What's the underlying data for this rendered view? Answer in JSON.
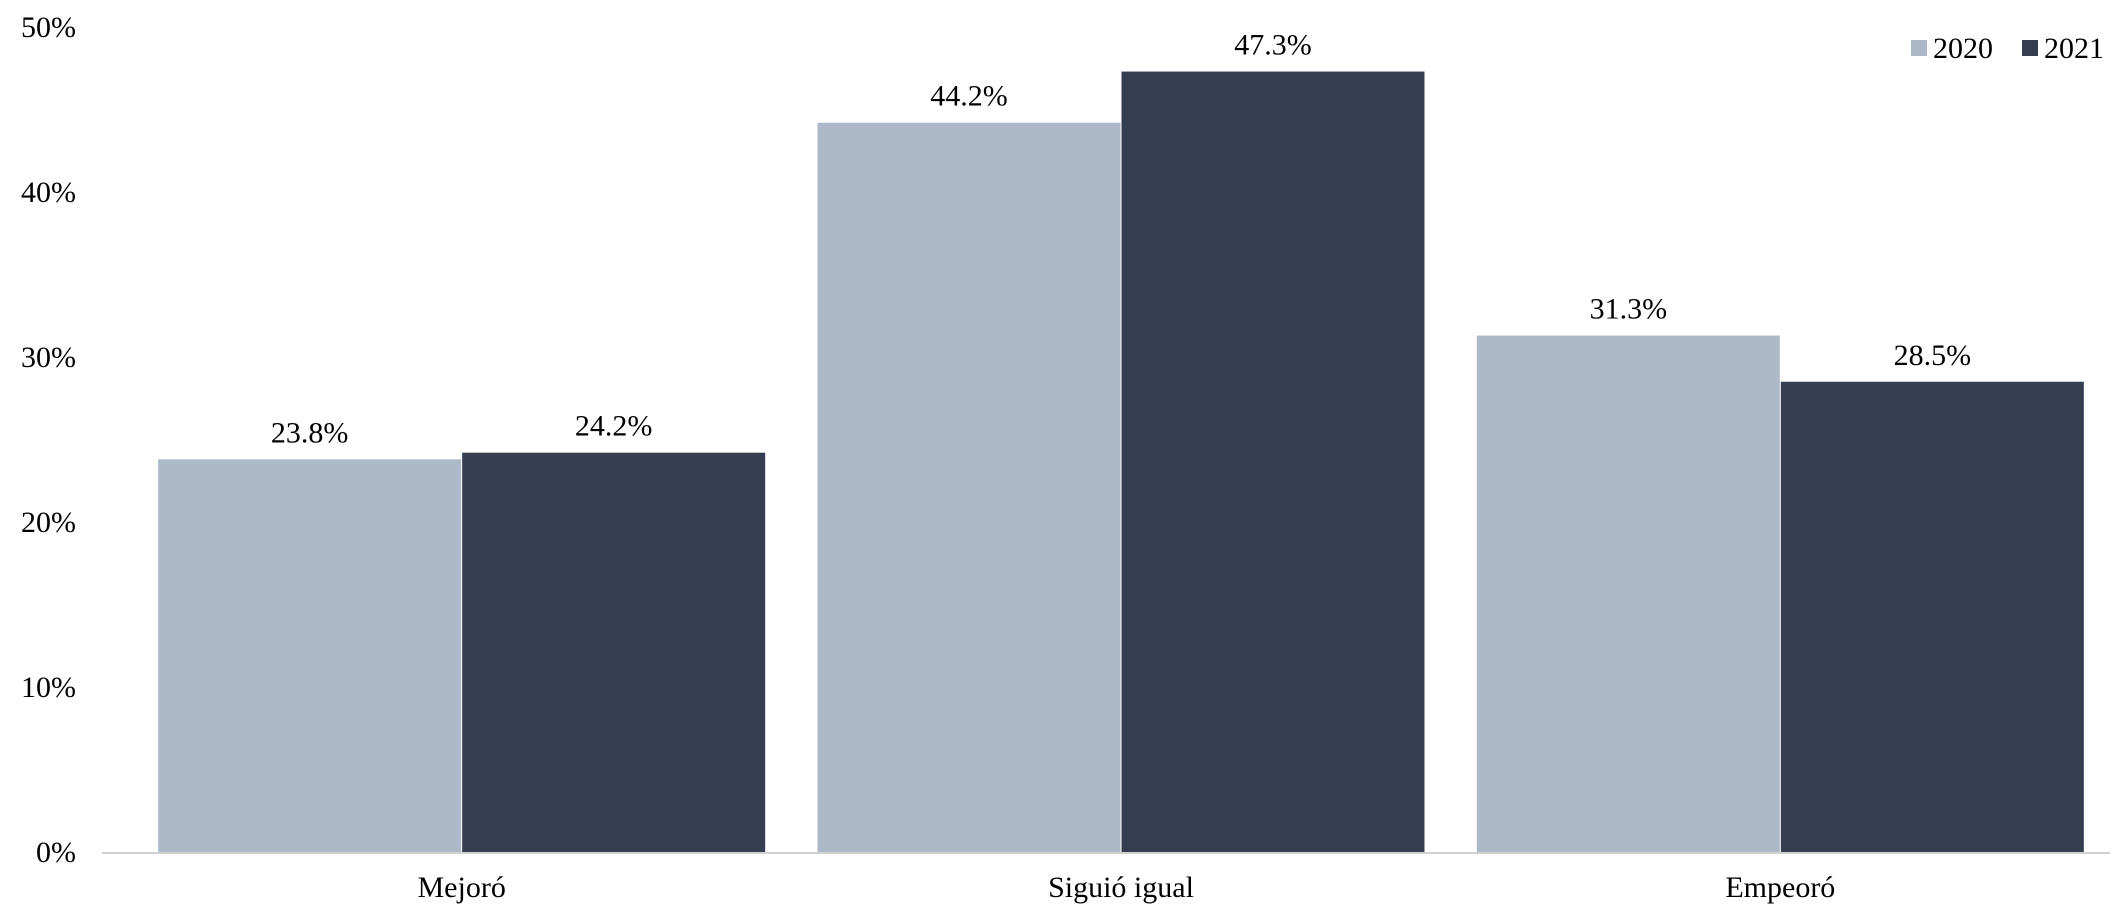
{
  "chart_data": {
    "type": "bar",
    "title": "",
    "xlabel": "",
    "ylabel": "",
    "categories": [
      "Mejoró",
      "Siguió igual",
      "Empeoró"
    ],
    "series": [
      {
        "name": "2020",
        "values": [
          23.8,
          44.2,
          31.3
        ],
        "labels": [
          "23.8%",
          "44.2%",
          "31.3%"
        ],
        "color": "#adb8c9"
      },
      {
        "name": "2021",
        "values": [
          24.2,
          47.3,
          28.5
        ],
        "labels": [
          "24.2%",
          "47.3%",
          "28.5%"
        ],
        "color": "#343e50"
      }
    ],
    "ylim": [
      0,
      50
    ],
    "yticks": [
      0,
      10,
      20,
      30,
      40,
      50
    ],
    "ytick_labels": [
      "0%",
      "10%",
      "20%",
      "30%",
      "40%",
      "50%"
    ],
    "grid": false,
    "legend_position": "top-right"
  }
}
